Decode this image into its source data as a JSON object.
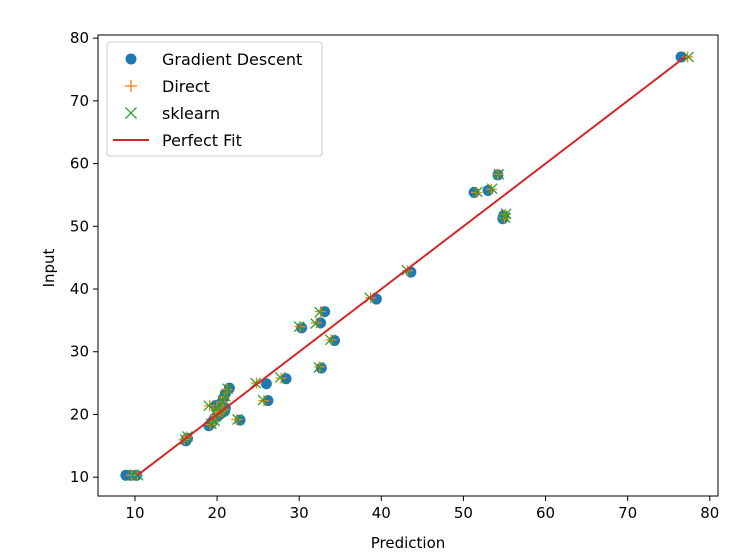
{
  "chart_data": {
    "type": "scatter",
    "title": "",
    "xlabel": "Prediction",
    "ylabel": "Input",
    "xlim": [
      5.5,
      81
    ],
    "ylim": [
      7.0,
      80.5
    ],
    "xticks": [
      10,
      20,
      30,
      40,
      50,
      60,
      70,
      80
    ],
    "yticks": [
      10,
      20,
      30,
      40,
      50,
      60,
      70,
      80
    ],
    "grid": false,
    "legend_position": "upper-left",
    "perfect_fit": {
      "name": "Perfect Fit",
      "x": [
        10.2,
        77.0
      ],
      "y": [
        10.2,
        77.0
      ],
      "color": "#d62728"
    },
    "series": [
      {
        "name": "Gradient Descent",
        "marker": "circle",
        "color": "#1f77b4",
        "points": [
          [
            8.9,
            10.3
          ],
          [
            9.5,
            10.3
          ],
          [
            10.2,
            10.3
          ],
          [
            16.2,
            15.8
          ],
          [
            16.4,
            16.2
          ],
          [
            19.0,
            18.2
          ],
          [
            19.4,
            18.8
          ],
          [
            19.7,
            19.4
          ],
          [
            20.0,
            19.6
          ],
          [
            20.3,
            20.0
          ],
          [
            20.6,
            20.3
          ],
          [
            20.9,
            20.5
          ],
          [
            21.0,
            21.0
          ],
          [
            19.8,
            21.4
          ],
          [
            20.2,
            20.8
          ],
          [
            20.5,
            21.8
          ],
          [
            20.8,
            22.6
          ],
          [
            21.0,
            23.3
          ],
          [
            21.5,
            24.2
          ],
          [
            22.8,
            19.1
          ],
          [
            26.0,
            24.9
          ],
          [
            26.2,
            22.2
          ],
          [
            28.4,
            25.7
          ],
          [
            30.3,
            33.8
          ],
          [
            32.6,
            34.6
          ],
          [
            32.7,
            27.4
          ],
          [
            33.1,
            36.4
          ],
          [
            34.3,
            31.8
          ],
          [
            39.4,
            38.4
          ],
          [
            43.6,
            42.7
          ],
          [
            51.3,
            55.4
          ],
          [
            53.0,
            55.7
          ],
          [
            54.2,
            58.2
          ],
          [
            54.8,
            51.2
          ],
          [
            54.9,
            51.7
          ],
          [
            76.5,
            77.0
          ]
        ]
      },
      {
        "name": "Direct",
        "marker": "plus",
        "color": "#ff7f0e",
        "points": [
          [
            9.6,
            10.3
          ],
          [
            10.3,
            10.3
          ],
          [
            16.0,
            16.0
          ],
          [
            16.3,
            16.4
          ],
          [
            19.2,
            18.4
          ],
          [
            19.6,
            18.9
          ],
          [
            19.8,
            19.8
          ],
          [
            20.2,
            20.2
          ],
          [
            20.5,
            20.5
          ],
          [
            20.8,
            20.8
          ],
          [
            19.1,
            21.4
          ],
          [
            20.0,
            21.0
          ],
          [
            20.6,
            22.0
          ],
          [
            20.9,
            22.8
          ],
          [
            21.2,
            24.0
          ],
          [
            22.4,
            19.2
          ],
          [
            24.8,
            25.0
          ],
          [
            25.7,
            22.2
          ],
          [
            27.8,
            25.8
          ],
          [
            30.1,
            34.0
          ],
          [
            32.1,
            34.6
          ],
          [
            32.5,
            27.6
          ],
          [
            32.6,
            36.4
          ],
          [
            33.9,
            31.9
          ],
          [
            38.7,
            38.6
          ],
          [
            43.2,
            42.9
          ],
          [
            51.6,
            55.4
          ],
          [
            53.4,
            55.9
          ],
          [
            54.2,
            58.3
          ],
          [
            55.0,
            51.3
          ],
          [
            55.1,
            51.9
          ],
          [
            77.3,
            77.0
          ]
        ]
      },
      {
        "name": "sklearn",
        "marker": "x",
        "color": "#2ca02c",
        "points": [
          [
            9.7,
            10.3
          ],
          [
            10.4,
            10.3
          ],
          [
            16.1,
            16.0
          ],
          [
            16.4,
            16.5
          ],
          [
            19.3,
            18.5
          ],
          [
            19.7,
            19.0
          ],
          [
            19.9,
            19.9
          ],
          [
            20.3,
            20.3
          ],
          [
            20.6,
            20.6
          ],
          [
            20.9,
            20.9
          ],
          [
            19.0,
            21.4
          ],
          [
            20.1,
            21.1
          ],
          [
            20.7,
            22.1
          ],
          [
            21.0,
            22.9
          ],
          [
            21.3,
            24.1
          ],
          [
            22.5,
            19.2
          ],
          [
            24.7,
            25.0
          ],
          [
            25.6,
            22.3
          ],
          [
            27.7,
            25.9
          ],
          [
            30.0,
            34.0
          ],
          [
            32.0,
            34.5
          ],
          [
            32.4,
            27.5
          ],
          [
            32.5,
            36.3
          ],
          [
            33.8,
            31.9
          ],
          [
            38.6,
            38.6
          ],
          [
            43.1,
            43.0
          ],
          [
            51.7,
            55.5
          ],
          [
            53.5,
            56.0
          ],
          [
            54.3,
            58.3
          ],
          [
            55.1,
            51.4
          ],
          [
            55.2,
            52.0
          ],
          [
            77.4,
            77.0
          ]
        ]
      }
    ]
  }
}
